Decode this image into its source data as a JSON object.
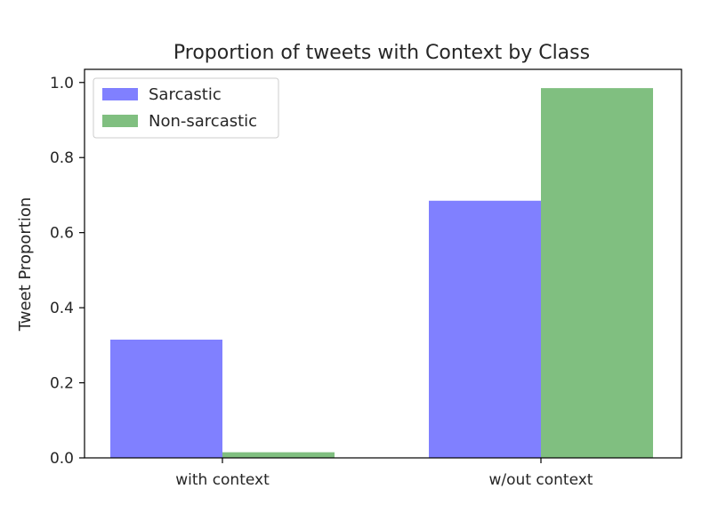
{
  "chart_data": {
    "type": "bar",
    "title": "Proportion of tweets with Context by Class",
    "xlabel": "",
    "ylabel": "Tweet Proportion",
    "categories": [
      "with context",
      "w/out context"
    ],
    "series": [
      {
        "name": "Sarcastic",
        "values": [
          0.315,
          0.685
        ],
        "color": "#8080ff"
      },
      {
        "name": "Non-sarcastic",
        "values": [
          0.015,
          0.985
        ],
        "color": "#80bf80"
      }
    ],
    "ylim": [
      0,
      1.035
    ],
    "yticks": [
      "0.0",
      "0.2",
      "0.4",
      "0.6",
      "0.8",
      "1.0"
    ],
    "grid": false,
    "legend_position": "top-left"
  }
}
